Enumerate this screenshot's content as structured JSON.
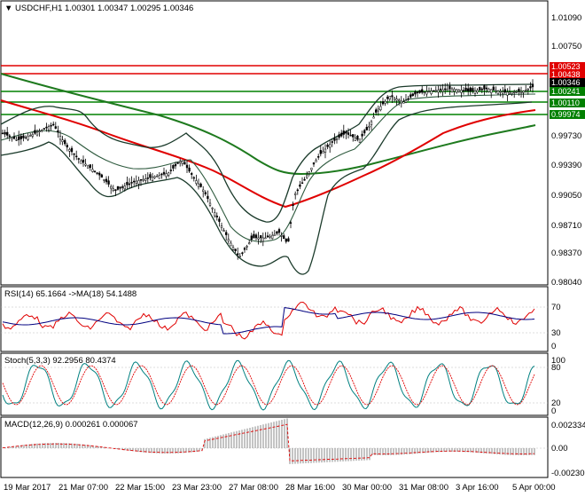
{
  "main": {
    "header": "USDCHF,H1  1.00301 1.00347 1.00295 1.00346",
    "y_ticks": [
      "1.01090",
      "1.00750",
      "1.00410",
      "1.00070",
      "0.99730",
      "0.99390",
      "0.99050",
      "0.98710",
      "0.98370",
      "0.98040"
    ],
    "price_tags": [
      {
        "text": "1.00523",
        "color": "#e00000"
      },
      {
        "text": "1.00438",
        "color": "#e00000"
      },
      {
        "text": "1.00346",
        "color": "#000000"
      },
      {
        "text": "1.00241",
        "color": "#008000"
      },
      {
        "text": "1.00110",
        "color": "#008000"
      },
      {
        "text": "0.99974",
        "color": "#008000"
      }
    ]
  },
  "rsi": {
    "header": "RSI(14) 65.1664  ->MA(18) 54.1488",
    "ticks": [
      "70",
      "30",
      "0"
    ]
  },
  "stoch": {
    "header": "Stoch(5,3,3) 92.2956 80.4374",
    "ticks": [
      "100",
      "80",
      "20",
      "0"
    ]
  },
  "macd": {
    "header": "MACD(12,26,9) 0.000261 0.000067",
    "ticks": [
      "0.002334",
      "0.00",
      "-0.002306"
    ]
  },
  "x_axis": [
    "19 Mar 2017",
    "21 Mar 07:00",
    "22 Mar 15:00",
    "23 Mar 23:00",
    "27 Mar 08:00",
    "28 Mar 16:00",
    "30 Mar 00:00",
    "31 Mar 08:00",
    "3 Apr 16:00",
    "5 Apr 00:00"
  ],
  "colors": {
    "support": "#008000",
    "resistance": "#e00000",
    "ma_green": "#1e7a1e",
    "ma_red": "#e00000",
    "rsi": "#e00000",
    "ma": "#000080",
    "stoch": "#008080"
  }
}
